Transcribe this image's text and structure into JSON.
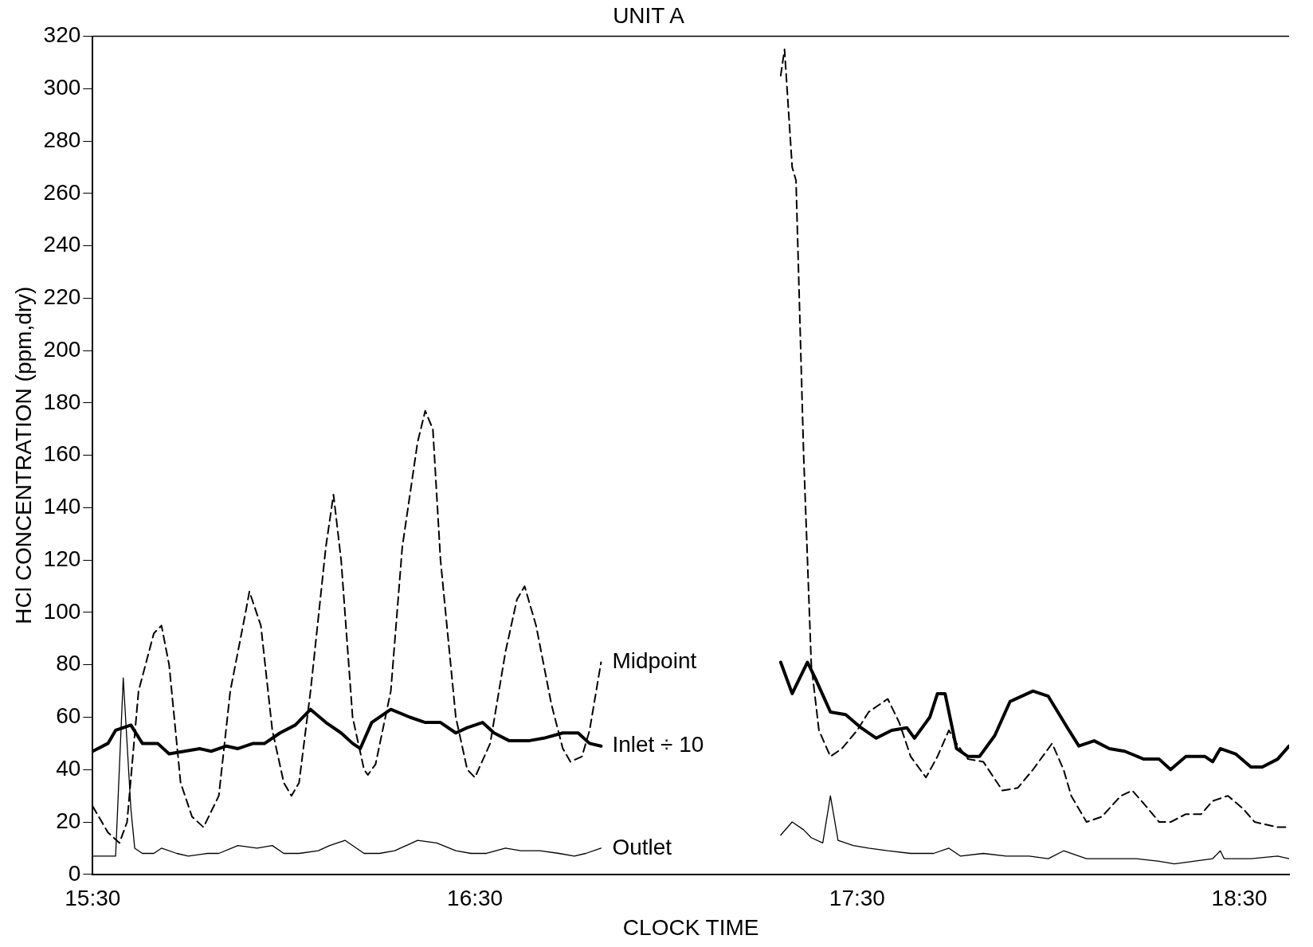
{
  "chart_data": {
    "type": "line",
    "title": "UNIT A",
    "xlabel": "CLOCK TIME",
    "ylabel": "HCl CONCENTRATION (ppm,dry)",
    "xlim": [
      15.5,
      18.63
    ],
    "xticks": [
      {
        "value": 15.5,
        "label": "15:30"
      },
      {
        "value": 16.5,
        "label": "16:30"
      },
      {
        "value": 17.5,
        "label": "17:30"
      },
      {
        "value": 18.5,
        "label": "18:30"
      }
    ],
    "ylim": [
      0,
      320
    ],
    "yticks": [
      0,
      20,
      40,
      60,
      80,
      100,
      120,
      140,
      160,
      180,
      200,
      220,
      240,
      260,
      280,
      300,
      320
    ],
    "grid": false,
    "legend": false,
    "marker": "none",
    "series": [
      {
        "name": "Midpoint",
        "color": "#000000",
        "line_style": "dashed",
        "x": [
          15.5,
          15.54,
          15.57,
          15.59,
          15.62,
          15.66,
          15.68,
          15.7,
          15.73,
          15.76,
          15.79,
          15.83,
          15.86,
          15.9,
          15.91,
          15.94,
          15.97,
          16.0,
          16.02,
          16.04,
          16.07,
          16.11,
          16.13,
          16.15,
          16.18,
          16.21,
          16.22,
          16.24,
          16.28,
          16.31,
          16.35,
          16.37,
          16.39,
          16.41,
          16.45,
          16.48,
          16.5,
          16.54,
          16.58,
          16.61,
          16.63,
          16.66,
          16.7,
          16.73,
          16.75,
          16.78,
          16.8,
          16.83,
          17.0,
          17.3,
          17.31,
          17.33,
          17.34,
          17.36,
          17.38,
          17.4,
          17.43,
          17.46,
          17.5,
          17.53,
          17.58,
          17.61,
          17.64,
          17.68,
          17.71,
          17.74,
          17.76,
          17.79,
          17.83,
          17.88,
          17.92,
          17.96,
          18.01,
          18.04,
          18.06,
          18.1,
          18.14,
          18.19,
          18.22,
          18.25,
          18.29,
          18.32,
          18.36,
          18.4,
          18.43,
          18.47,
          18.51,
          18.54,
          18.6,
          18.63
        ],
        "values": [
          26,
          16,
          12,
          20,
          70,
          92,
          95,
          80,
          35,
          22,
          18,
          30,
          70,
          100,
          108,
          95,
          55,
          35,
          30,
          35,
          70,
          125,
          145,
          120,
          60,
          40,
          38,
          42,
          70,
          125,
          165,
          177,
          170,
          120,
          60,
          40,
          37,
          50,
          85,
          105,
          110,
          95,
          65,
          48,
          43,
          45,
          55,
          81,
          null,
          305,
          315,
          270,
          265,
          160,
          80,
          55,
          45,
          48,
          55,
          62,
          67,
          58,
          45,
          37,
          45,
          55,
          50,
          44,
          43,
          32,
          33,
          40,
          50,
          40,
          30,
          20,
          22,
          30,
          32,
          27,
          20,
          20,
          23,
          23,
          28,
          30,
          25,
          20,
          18,
          18
        ]
      },
      {
        "name": "Inlet ÷ 10",
        "color": "#000000",
        "line_style": "solid",
        "x": [
          15.5,
          15.54,
          15.56,
          15.6,
          15.63,
          15.67,
          15.7,
          15.74,
          15.78,
          15.81,
          15.85,
          15.88,
          15.92,
          15.95,
          15.99,
          16.03,
          16.07,
          16.11,
          16.15,
          16.18,
          16.2,
          16.23,
          16.28,
          16.33,
          16.37,
          16.41,
          16.45,
          16.48,
          16.52,
          16.55,
          16.59,
          16.64,
          16.68,
          16.73,
          16.77,
          16.8,
          16.83,
          17.0,
          17.3,
          17.33,
          17.37,
          17.39,
          17.43,
          17.47,
          17.51,
          17.55,
          17.59,
          17.63,
          17.65,
          17.69,
          17.71,
          17.73,
          17.76,
          17.79,
          17.82,
          17.86,
          17.9,
          17.96,
          18.0,
          18.05,
          18.08,
          18.12,
          18.16,
          18.2,
          18.25,
          18.29,
          18.32,
          18.36,
          18.41,
          18.43,
          18.45,
          18.49,
          18.53,
          18.56,
          18.6,
          18.63
        ],
        "values": [
          47,
          50,
          55,
          57,
          50,
          50,
          46,
          47,
          48,
          47,
          49,
          48,
          50,
          50,
          54,
          57,
          63,
          58,
          54,
          50,
          48,
          58,
          63,
          60,
          58,
          58,
          54,
          56,
          58,
          54,
          51,
          51,
          52,
          54,
          54,
          50,
          49,
          null,
          81,
          69,
          81,
          75,
          62,
          61,
          56,
          52,
          55,
          56,
          52,
          60,
          69,
          69,
          48,
          45,
          45,
          53,
          66,
          70,
          68,
          56,
          49,
          51,
          48,
          47,
          44,
          44,
          40,
          45,
          45,
          43,
          48,
          46,
          41,
          41,
          44,
          49
        ]
      },
      {
        "name": "Outlet",
        "color": "#000000",
        "line_style": "solid",
        "x": [
          15.5,
          15.56,
          15.58,
          15.6,
          15.61,
          15.63,
          15.66,
          15.68,
          15.72,
          15.75,
          15.8,
          15.83,
          15.88,
          15.93,
          15.97,
          16.0,
          16.04,
          16.09,
          16.12,
          16.16,
          16.21,
          16.25,
          16.29,
          16.35,
          16.4,
          16.45,
          16.49,
          16.53,
          16.58,
          16.62,
          16.67,
          16.72,
          16.76,
          16.79,
          16.83,
          17.0,
          17.3,
          17.33,
          17.36,
          17.38,
          17.41,
          17.43,
          17.45,
          17.49,
          17.53,
          17.58,
          17.64,
          17.7,
          17.74,
          17.77,
          17.83,
          17.89,
          17.95,
          18.0,
          18.04,
          18.1,
          18.17,
          18.23,
          18.29,
          18.33,
          18.38,
          18.43,
          18.45,
          18.46,
          18.53,
          18.6,
          18.63
        ],
        "values": [
          7,
          7,
          75,
          25,
          10,
          8,
          8,
          10,
          8,
          7,
          8,
          8,
          11,
          10,
          11,
          8,
          8,
          9,
          11,
          13,
          8,
          8,
          9,
          13,
          12,
          9,
          8,
          8,
          10,
          9,
          9,
          8,
          7,
          8,
          10,
          null,
          15,
          20,
          17,
          14,
          12,
          30,
          13,
          11,
          10,
          9,
          8,
          8,
          10,
          7,
          8,
          7,
          7,
          6,
          9,
          6,
          6,
          6,
          5,
          4,
          5,
          6,
          9,
          6,
          6,
          7,
          6
        ]
      }
    ]
  }
}
